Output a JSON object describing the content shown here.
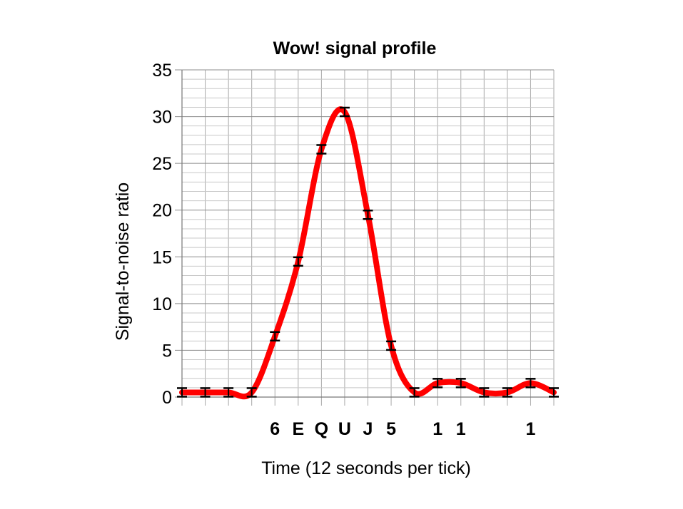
{
  "chart_data": {
    "type": "line",
    "title": "Wow! signal profile",
    "xlabel": "Time (12 seconds per tick)",
    "ylabel": "Signal-to-noise ratio",
    "ylim": [
      0,
      35
    ],
    "yticks": [
      "0",
      "5",
      "10",
      "15",
      "20",
      "25",
      "30",
      "35"
    ],
    "grid": true,
    "x_tick_labels": [
      "",
      "",
      "",
      "",
      "6",
      "E",
      "Q",
      "U",
      "J",
      "5",
      "",
      "1",
      "1",
      "",
      "",
      "1",
      ""
    ],
    "series": [
      {
        "color": "#ff0000",
        "smooth": true,
        "error_bars": true,
        "values": [
          0.5,
          0.5,
          0.5,
          0.5,
          6.5,
          14.5,
          26.5,
          30.5,
          19.5,
          5.5,
          0.5,
          1.5,
          1.5,
          0.5,
          0.5,
          1.5,
          0.5
        ]
      }
    ],
    "error_bar_color": "#000000"
  }
}
